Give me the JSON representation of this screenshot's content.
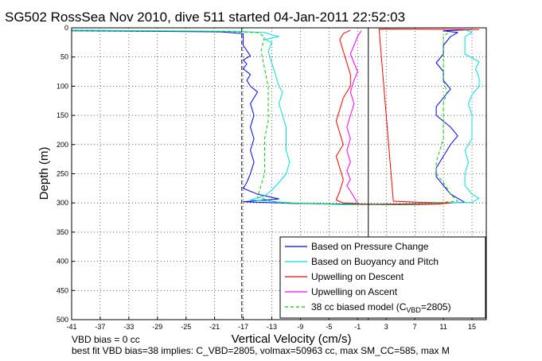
{
  "chart_data": {
    "type": "line",
    "title": "SG502 RossSea Nov 2010, dive 511 started 04-Jan-2011 22:52:03",
    "xlabel": "Vertical Velocity (cm/s)",
    "ylabel": "Depth (m)",
    "xlim": [
      -41,
      17
    ],
    "ylim": [
      0,
      500
    ],
    "y_reversed": true,
    "grid": true,
    "x_ticks": [
      {
        "label": "-41",
        "pos": -41
      },
      {
        "label": "-37",
        "pos": -37
      },
      {
        "label": "-33",
        "pos": -33
      },
      {
        "label": "-29",
        "pos": -29
      },
      {
        "label": "-25",
        "pos": -25
      },
      {
        "label": "-21",
        "pos": -21
      },
      {
        "label": "-17",
        "pos": -17
      },
      {
        "label": "-13",
        "pos": -13
      },
      {
        "label": "-9",
        "pos": -9
      },
      {
        "label": "-5",
        "pos": -5
      },
      {
        "label": "-1",
        "pos": -1
      },
      {
        "label": "3",
        "pos": 3
      },
      {
        "label": "7",
        "pos": 7
      },
      {
        "label": "11",
        "pos": 11
      },
      {
        "label": "15",
        "pos": 15
      }
    ],
    "y_ticks": [
      "0",
      "50",
      "100",
      "150",
      "200",
      "250",
      "300",
      "350",
      "400",
      "450",
      "500"
    ],
    "legend_position": "bottom-right",
    "series": [
      {
        "name": "Based on Pressure Change",
        "color": "#0000ff",
        "dash": "solid",
        "points": [
          [
            -41,
            5
          ],
          [
            -30,
            6
          ],
          [
            -20,
            7
          ],
          [
            -17,
            10
          ],
          [
            -17,
            30
          ],
          [
            -16,
            48
          ],
          [
            -17,
            55
          ],
          [
            -16.5,
            62
          ],
          [
            -17,
            70
          ],
          [
            -16,
            80
          ],
          [
            -16.5,
            90
          ],
          [
            -16,
            100
          ],
          [
            -15,
            110
          ],
          [
            -16,
            130
          ],
          [
            -15.5,
            150
          ],
          [
            -16,
            170
          ],
          [
            -15.5,
            190
          ],
          [
            -16,
            210
          ],
          [
            -15.5,
            230
          ],
          [
            -16,
            250
          ],
          [
            -16.5,
            265
          ],
          [
            -17,
            275
          ],
          [
            -15,
            285
          ],
          [
            -12,
            293
          ],
          [
            -17,
            298
          ],
          [
            -10,
            301
          ],
          [
            -2,
            302
          ],
          [
            3,
            302
          ],
          [
            10,
            301
          ],
          [
            14,
            299
          ],
          [
            13,
            292
          ],
          [
            12,
            285
          ],
          [
            11,
            270
          ],
          [
            10,
            255
          ],
          [
            10,
            240
          ],
          [
            11,
            220
          ],
          [
            12,
            200
          ],
          [
            13,
            185
          ],
          [
            12,
            170
          ],
          [
            10,
            150
          ],
          [
            10,
            135
          ],
          [
            11,
            120
          ],
          [
            12,
            105
          ],
          [
            11,
            90
          ],
          [
            11,
            75
          ],
          [
            10,
            60
          ],
          [
            11,
            45
          ],
          [
            11,
            30
          ],
          [
            12,
            15
          ],
          [
            13,
            8
          ],
          [
            11,
            5
          ],
          [
            15,
            3
          ]
        ]
      },
      {
        "name": "Based on Buoyancy and Pitch",
        "color": "#00e0e0",
        "dash": "solid",
        "points": [
          [
            -41,
            4
          ],
          [
            -28,
            5
          ],
          [
            -18,
            6
          ],
          [
            -14,
            8
          ],
          [
            -13,
            12
          ],
          [
            -12,
            15
          ],
          [
            -14,
            20
          ],
          [
            -13,
            25
          ],
          [
            -13.5,
            40
          ],
          [
            -13,
            60
          ],
          [
            -12.5,
            80
          ],
          [
            -12,
            100
          ],
          [
            -11.5,
            110
          ],
          [
            -12,
            130
          ],
          [
            -11.5,
            150
          ],
          [
            -11,
            170
          ],
          [
            -11,
            190
          ],
          [
            -11,
            210
          ],
          [
            -10.5,
            230
          ],
          [
            -11,
            250
          ],
          [
            -12,
            265
          ],
          [
            -13,
            278
          ],
          [
            -14,
            288
          ],
          [
            -16,
            295
          ],
          [
            -10,
            300
          ],
          [
            -3,
            303
          ],
          [
            3,
            303
          ],
          [
            10,
            301
          ],
          [
            15,
            299
          ],
          [
            16,
            292
          ],
          [
            15,
            285
          ],
          [
            14,
            270
          ],
          [
            14,
            250
          ],
          [
            14.5,
            230
          ],
          [
            14,
            210
          ],
          [
            15,
            190
          ],
          [
            15,
            170
          ],
          [
            15,
            150
          ],
          [
            14.5,
            130
          ],
          [
            15,
            115
          ],
          [
            16,
            100
          ],
          [
            16,
            85
          ],
          [
            15.5,
            70
          ],
          [
            16,
            58
          ],
          [
            14,
            45
          ],
          [
            14,
            30
          ],
          [
            14,
            15
          ],
          [
            15,
            8
          ],
          [
            14,
            3
          ]
        ]
      },
      {
        "name": "Upwelling on Descent",
        "color": "#ff0000",
        "dash": "solid",
        "points": [
          [
            -2,
            4
          ],
          [
            -3,
            10
          ],
          [
            -3.5,
            20
          ],
          [
            -3,
            40
          ],
          [
            -2.5,
            60
          ],
          [
            -2,
            80
          ],
          [
            -2,
            100
          ],
          [
            -3,
            120
          ],
          [
            -3.5,
            140
          ],
          [
            -4,
            160
          ],
          [
            -3.5,
            180
          ],
          [
            -3,
            200
          ],
          [
            -4,
            220
          ],
          [
            -3.5,
            240
          ],
          [
            -3,
            260
          ],
          [
            -3.5,
            280
          ],
          [
            -4,
            295
          ],
          [
            -3,
            300
          ],
          [
            0,
            302
          ],
          [
            3,
            303
          ],
          [
            7,
            303
          ],
          [
            10,
            302
          ],
          [
            12,
            300
          ],
          [
            8,
            299
          ],
          [
            4,
            297
          ],
          [
            2,
            2
          ],
          [
            16,
            3
          ]
        ]
      },
      {
        "name": "Upwelling on Ascent",
        "color": "#ff00ff",
        "dash": "solid",
        "points": [
          [
            -1,
            300
          ],
          [
            -1.5,
            290
          ],
          [
            -2,
            280
          ],
          [
            -2.5,
            270
          ],
          [
            -2,
            260
          ],
          [
            -2.5,
            245
          ],
          [
            -2,
            230
          ],
          [
            -2.5,
            210
          ],
          [
            -2,
            190
          ],
          [
            -2.5,
            170
          ],
          [
            -2,
            150
          ],
          [
            -1.5,
            130
          ],
          [
            -2,
            110
          ],
          [
            -1.5,
            90
          ],
          [
            -1,
            75
          ],
          [
            -1.5,
            60
          ],
          [
            -2,
            45
          ],
          [
            -1.5,
            30
          ],
          [
            -1,
            15
          ],
          [
            -0.5,
            5
          ]
        ]
      },
      {
        "name": "38 cc biased model (C",
        "name_sub": "VBD",
        "name_tail": "=2805)",
        "color": "#00cc00",
        "dash": "dashed",
        "points": [
          [
            -41,
            5
          ],
          [
            -20,
            6
          ],
          [
            -15,
            8
          ],
          [
            -14,
            15
          ],
          [
            -14.5,
            40
          ],
          [
            -14,
            70
          ],
          [
            -13.5,
            100
          ],
          [
            -13.5,
            130
          ],
          [
            -13.5,
            160
          ],
          [
            -14,
            190
          ],
          [
            -14,
            220
          ],
          [
            -14,
            250
          ],
          [
            -14.5,
            270
          ],
          [
            -15,
            290
          ],
          [
            -12,
            300
          ],
          [
            0,
            303
          ],
          [
            9,
            301
          ],
          [
            13,
            297
          ],
          [
            12,
            285
          ],
          [
            11,
            265
          ],
          [
            10,
            250
          ],
          [
            10,
            230
          ],
          [
            10.5,
            210
          ],
          [
            11,
            190
          ],
          [
            11,
            170
          ],
          [
            11,
            150
          ],
          [
            11,
            130
          ],
          [
            11.5,
            110
          ],
          [
            11,
            90
          ],
          [
            11,
            70
          ],
          [
            11,
            50
          ],
          [
            11,
            30
          ],
          [
            11,
            15
          ],
          [
            12,
            5
          ]
        ]
      }
    ],
    "vlines": [
      {
        "x": -17.2,
        "color": "#000000",
        "dash": "dashed"
      },
      {
        "x": 0.5,
        "color": "#000000",
        "dash": "solid"
      }
    ]
  },
  "notes": [
    "VBD bias = 0 cc",
    "best fit VBD bias=38 implies: C_VBD=2805, volmax=50963 cc, max SM_CC=585, max M"
  ]
}
